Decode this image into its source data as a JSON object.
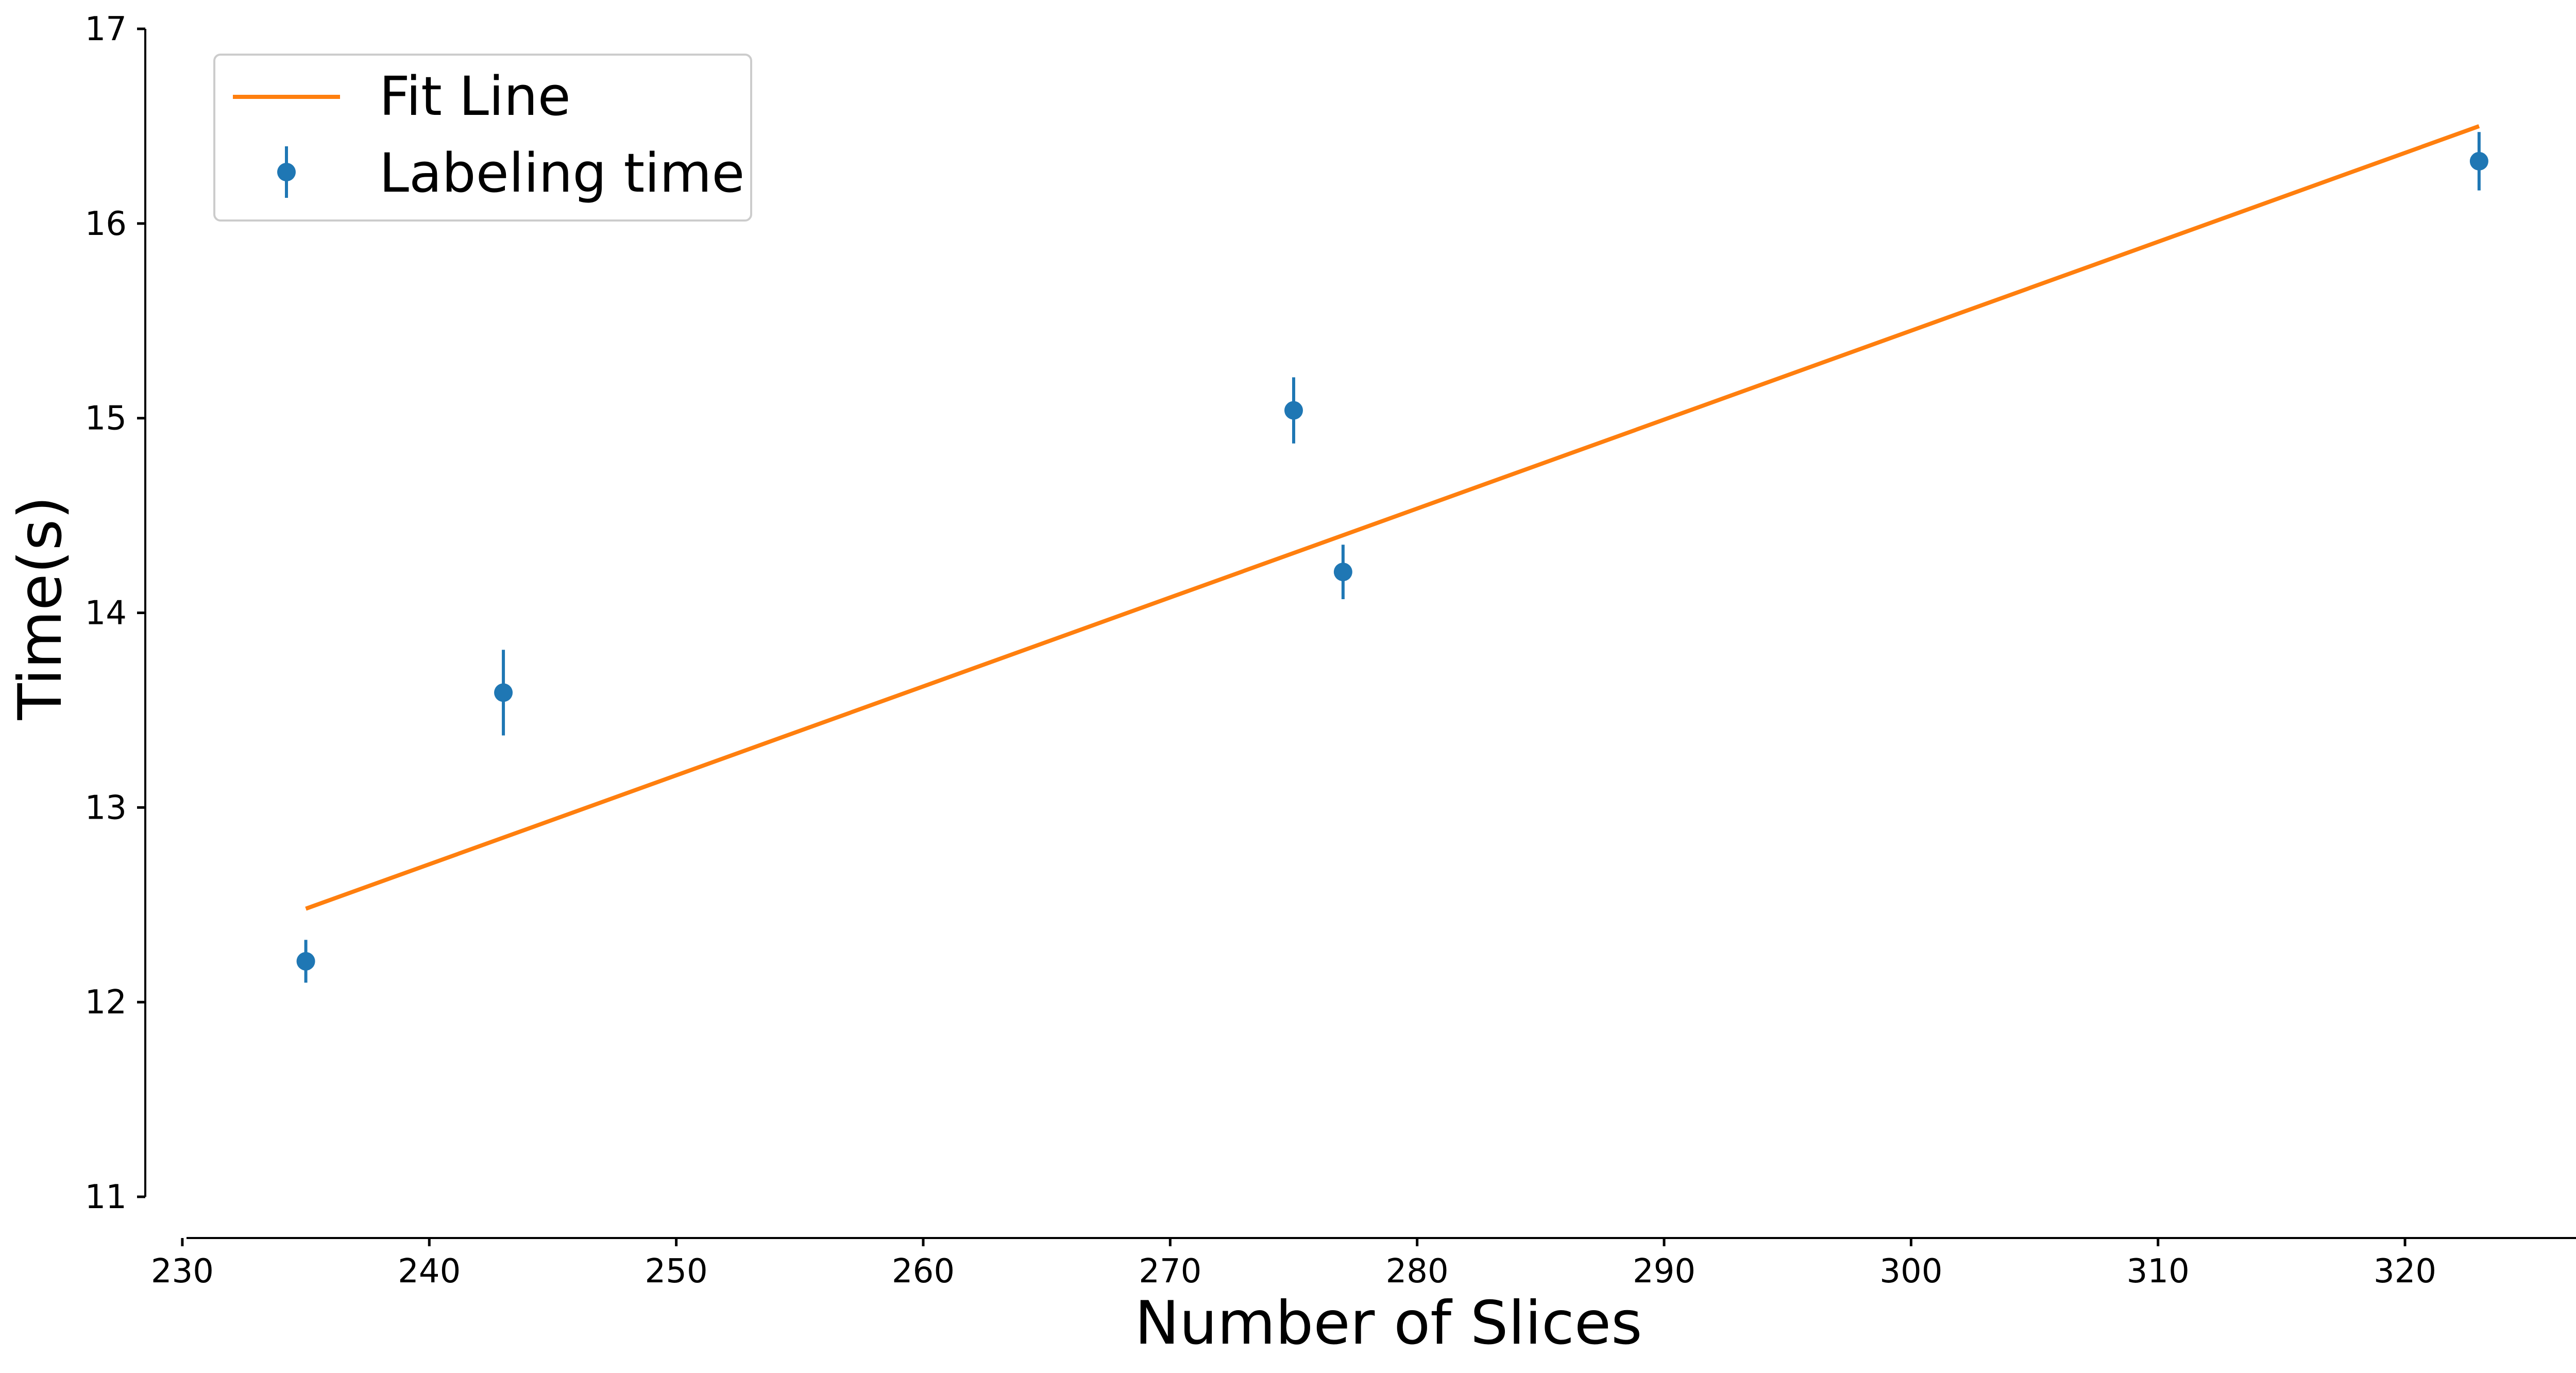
{
  "chart_data": {
    "type": "scatter",
    "title": "",
    "xlabel": "Number of Slices",
    "ylabel": "Time(s)",
    "xlim": [
      228.5,
      327.3
    ],
    "ylim": [
      11,
      17
    ],
    "xticks": [
      230,
      240,
      250,
      260,
      270,
      280,
      290,
      300,
      310,
      320
    ],
    "yticks": [
      11,
      12,
      13,
      14,
      15,
      16,
      17
    ],
    "grid": false,
    "legend_position": "top-left",
    "series": [
      {
        "name": "Fit Line",
        "kind": "line",
        "color": "#ff7f0e",
        "x": [
          235,
          323
        ],
        "y": [
          12.48,
          16.5
        ]
      },
      {
        "name": "Labeling time",
        "kind": "errorbar",
        "color": "#1f77b4",
        "x": [
          235,
          243,
          275,
          277,
          323
        ],
        "y": [
          12.21,
          13.59,
          15.04,
          14.21,
          16.32
        ],
        "yerr": [
          0.11,
          0.22,
          0.17,
          0.14,
          0.15
        ]
      }
    ]
  }
}
